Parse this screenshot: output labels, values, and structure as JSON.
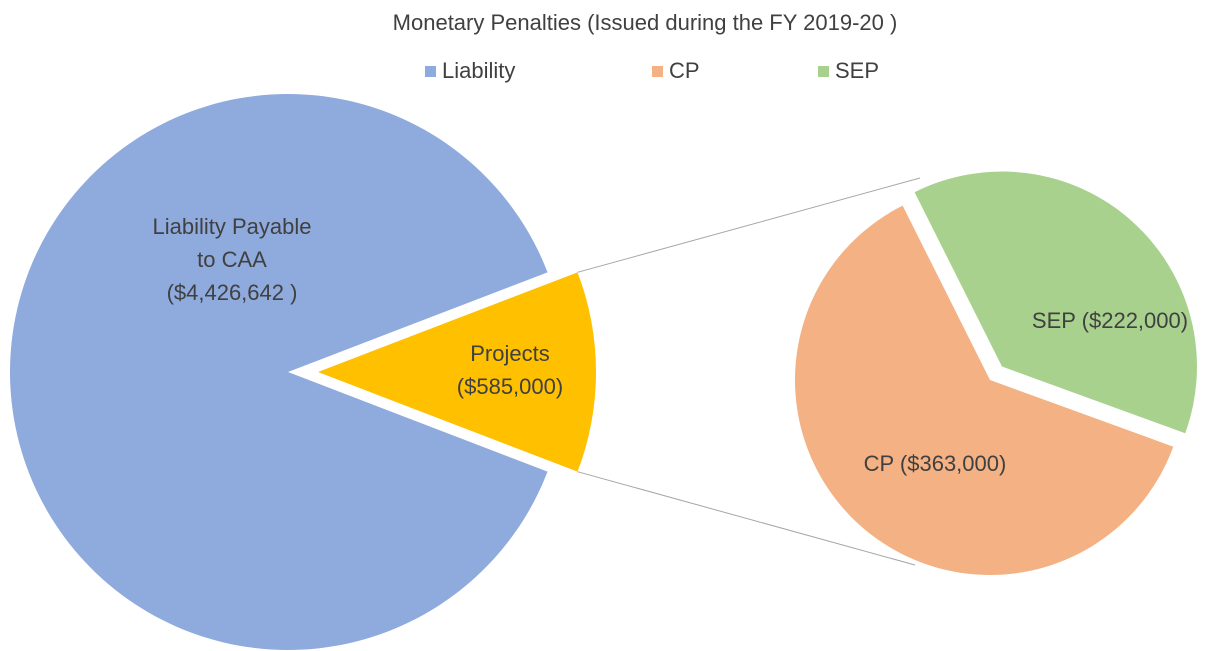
{
  "chart_data": {
    "type": "pie-of-pie",
    "title": "Monetary Penalties (Issued during the FY 2019-20 )",
    "legend": [
      {
        "name": "Liability",
        "color": "#8faadc"
      },
      {
        "name": "CP",
        "color": "#f4b183"
      },
      {
        "name": "SEP",
        "color": "#a9d18e"
      }
    ],
    "main": {
      "values": [
        4426642,
        585000
      ],
      "colors": [
        "#8faadc",
        "#ffc000"
      ],
      "value_labels": [
        [
          "Liability Payable",
          "to CAA",
          "($4,426,642 )"
        ],
        [
          "Projects",
          "($585,000)"
        ]
      ]
    },
    "secondary": {
      "values": [
        363000,
        222000
      ],
      "colors": [
        "#f4b183",
        "#a9d18e"
      ],
      "value_labels": [
        [
          "CP ($363,000)"
        ],
        [
          "SEP ($222,000)"
        ]
      ]
    }
  }
}
